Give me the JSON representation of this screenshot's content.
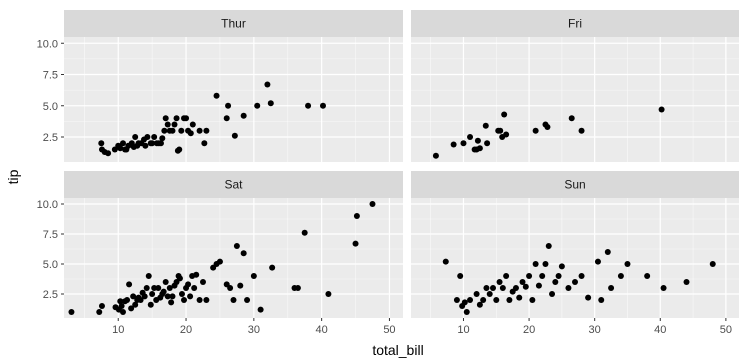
{
  "chart_data": {
    "type": "scatter",
    "facet_layout": "2x2",
    "xlabel": "total_bill",
    "ylabel": "tip",
    "xlim": [
      2,
      52
    ],
    "ylim": [
      0.5,
      10.5
    ],
    "x_ticks": [
      10,
      20,
      30,
      40,
      50
    ],
    "y_ticks": [
      2.5,
      5.0,
      7.5,
      10.0
    ],
    "y_tick_labels": [
      "2.5",
      "5.0",
      "7.5",
      "10.0"
    ],
    "grid": true,
    "colors": {
      "panel_background": "#ebebeb",
      "strip_background": "#d9d9d9",
      "grid_major": "#ffffff",
      "point": "#000000"
    },
    "panels": [
      {
        "label": "Thur",
        "points": [
          [
            7.5,
            2.0
          ],
          [
            7.6,
            1.5
          ],
          [
            8.0,
            1.3
          ],
          [
            8.5,
            1.2
          ],
          [
            9.5,
            1.5
          ],
          [
            10.0,
            1.8
          ],
          [
            10.3,
            1.6
          ],
          [
            10.7,
            2.0
          ],
          [
            11.0,
            1.5
          ],
          [
            11.2,
            1.5
          ],
          [
            11.5,
            1.8
          ],
          [
            12.0,
            2.0
          ],
          [
            12.3,
            1.7
          ],
          [
            12.5,
            2.5
          ],
          [
            12.8,
            1.8
          ],
          [
            13.0,
            2.0
          ],
          [
            13.4,
            2.0
          ],
          [
            13.8,
            2.3
          ],
          [
            14.0,
            1.8
          ],
          [
            14.3,
            2.5
          ],
          [
            14.8,
            2.0
          ],
          [
            15.0,
            2.0
          ],
          [
            15.3,
            2.5
          ],
          [
            15.7,
            2.0
          ],
          [
            16.0,
            2.0
          ],
          [
            16.3,
            2.0
          ],
          [
            16.5,
            2.4
          ],
          [
            16.8,
            3.0
          ],
          [
            17.0,
            4.0
          ],
          [
            17.3,
            3.5
          ],
          [
            17.6,
            3.0
          ],
          [
            18.0,
            3.0
          ],
          [
            18.3,
            3.5
          ],
          [
            18.6,
            4.0
          ],
          [
            18.8,
            1.4
          ],
          [
            19.0,
            1.5
          ],
          [
            19.3,
            3.0
          ],
          [
            19.7,
            4.0
          ],
          [
            20.0,
            4.0
          ],
          [
            20.3,
            3.0
          ],
          [
            20.7,
            2.8
          ],
          [
            21.0,
            3.5
          ],
          [
            22.0,
            3.0
          ],
          [
            22.7,
            2.0
          ],
          [
            23.0,
            3.0
          ],
          [
            24.5,
            5.8
          ],
          [
            26.0,
            4.0
          ],
          [
            26.2,
            5.0
          ],
          [
            27.2,
            2.6
          ],
          [
            28.5,
            4.2
          ],
          [
            30.5,
            5.0
          ],
          [
            32.0,
            6.7
          ],
          [
            32.5,
            5.2
          ],
          [
            38.0,
            5.0
          ],
          [
            40.2,
            5.0
          ]
        ]
      },
      {
        "label": "Fri",
        "points": [
          [
            5.8,
            1.0
          ],
          [
            8.5,
            1.9
          ],
          [
            10.0,
            2.0
          ],
          [
            11.0,
            2.5
          ],
          [
            11.7,
            1.5
          ],
          [
            12.0,
            1.5
          ],
          [
            12.2,
            2.2
          ],
          [
            12.5,
            1.6
          ],
          [
            13.4,
            3.4
          ],
          [
            13.6,
            2.0
          ],
          [
            15.3,
            3.0
          ],
          [
            15.6,
            3.0
          ],
          [
            15.9,
            2.5
          ],
          [
            16.2,
            4.3
          ],
          [
            16.5,
            2.7
          ],
          [
            21.0,
            3.0
          ],
          [
            22.5,
            3.5
          ],
          [
            22.8,
            3.3
          ],
          [
            26.5,
            4.0
          ],
          [
            28.0,
            3.0
          ],
          [
            40.2,
            4.7
          ]
        ]
      },
      {
        "label": "Sat",
        "points": [
          [
            3.1,
            1.0
          ],
          [
            7.2,
            1.0
          ],
          [
            7.6,
            1.5
          ],
          [
            9.6,
            1.4
          ],
          [
            10.1,
            1.2
          ],
          [
            10.3,
            1.9
          ],
          [
            10.5,
            1.5
          ],
          [
            10.7,
            1.0
          ],
          [
            11.0,
            1.9
          ],
          [
            11.3,
            2.0
          ],
          [
            11.6,
            3.3
          ],
          [
            11.9,
            1.3
          ],
          [
            12.2,
            2.3
          ],
          [
            12.5,
            1.6
          ],
          [
            12.8,
            2.0
          ],
          [
            13.0,
            2.2
          ],
          [
            13.3,
            2.0
          ],
          [
            13.6,
            2.6
          ],
          [
            13.9,
            2.3
          ],
          [
            14.2,
            3.0
          ],
          [
            14.5,
            4.0
          ],
          [
            14.8,
            1.6
          ],
          [
            15.0,
            2.5
          ],
          [
            15.3,
            3.0
          ],
          [
            15.6,
            2.0
          ],
          [
            15.9,
            3.0
          ],
          [
            16.2,
            2.2
          ],
          [
            16.5,
            2.5
          ],
          [
            16.7,
            2.7
          ],
          [
            17.0,
            3.5
          ],
          [
            17.3,
            2.3
          ],
          [
            17.6,
            3.0
          ],
          [
            17.8,
            1.8
          ],
          [
            18.0,
            2.3
          ],
          [
            18.3,
            3.2
          ],
          [
            18.6,
            3.5
          ],
          [
            18.9,
            4.0
          ],
          [
            19.1,
            3.8
          ],
          [
            19.4,
            2.5
          ],
          [
            19.7,
            2.0
          ],
          [
            20.0,
            3.0
          ],
          [
            20.3,
            3.3
          ],
          [
            20.6,
            2.3
          ],
          [
            20.9,
            4.0
          ],
          [
            21.2,
            3.0
          ],
          [
            21.5,
            4.1
          ],
          [
            22.0,
            2.0
          ],
          [
            22.5,
            3.5
          ],
          [
            23.0,
            2.0
          ],
          [
            24.0,
            4.7
          ],
          [
            24.5,
            5.0
          ],
          [
            25.0,
            5.2
          ],
          [
            26.0,
            3.3
          ],
          [
            26.5,
            3.0
          ],
          [
            27.0,
            2.0
          ],
          [
            27.5,
            6.5
          ],
          [
            28.0,
            3.2
          ],
          [
            28.5,
            5.9
          ],
          [
            29.0,
            2.0
          ],
          [
            30.0,
            4.0
          ],
          [
            31.0,
            1.2
          ],
          [
            32.7,
            4.7
          ],
          [
            36.0,
            3.0
          ],
          [
            36.5,
            3.0
          ],
          [
            37.5,
            7.6
          ],
          [
            41.0,
            2.5
          ],
          [
            45.0,
            6.7
          ],
          [
            45.2,
            9.0
          ],
          [
            47.5,
            10.0
          ]
        ]
      },
      {
        "label": "Sun",
        "points": [
          [
            7.3,
            5.2
          ],
          [
            9.0,
            2.0
          ],
          [
            9.5,
            4.0
          ],
          [
            9.8,
            1.5
          ],
          [
            10.2,
            1.8
          ],
          [
            10.5,
            1.0
          ],
          [
            11.0,
            2.0
          ],
          [
            12.0,
            2.5
          ],
          [
            12.5,
            1.6
          ],
          [
            13.0,
            2.0
          ],
          [
            13.5,
            3.0
          ],
          [
            14.0,
            2.5
          ],
          [
            14.5,
            3.0
          ],
          [
            15.0,
            2.0
          ],
          [
            15.5,
            3.5
          ],
          [
            16.0,
            3.0
          ],
          [
            16.5,
            4.0
          ],
          [
            17.0,
            2.0
          ],
          [
            17.5,
            2.7
          ],
          [
            18.0,
            3.0
          ],
          [
            18.5,
            2.2
          ],
          [
            19.0,
            3.5
          ],
          [
            19.5,
            3.1
          ],
          [
            20.0,
            4.0
          ],
          [
            20.5,
            2.0
          ],
          [
            21.0,
            5.0
          ],
          [
            21.5,
            3.2
          ],
          [
            22.0,
            4.0
          ],
          [
            22.5,
            5.0
          ],
          [
            23.0,
            6.5
          ],
          [
            23.5,
            2.5
          ],
          [
            24.0,
            3.5
          ],
          [
            24.5,
            4.0
          ],
          [
            25.0,
            4.8
          ],
          [
            26.0,
            3.0
          ],
          [
            27.0,
            3.5
          ],
          [
            28.0,
            4.0
          ],
          [
            29.0,
            2.2
          ],
          [
            30.5,
            5.2
          ],
          [
            31.0,
            2.0
          ],
          [
            32.0,
            6.0
          ],
          [
            32.5,
            3.0
          ],
          [
            34.0,
            4.0
          ],
          [
            35.0,
            5.0
          ],
          [
            38.0,
            4.0
          ],
          [
            40.5,
            3.0
          ],
          [
            44.0,
            3.5
          ],
          [
            48.0,
            5.0
          ]
        ]
      }
    ]
  }
}
